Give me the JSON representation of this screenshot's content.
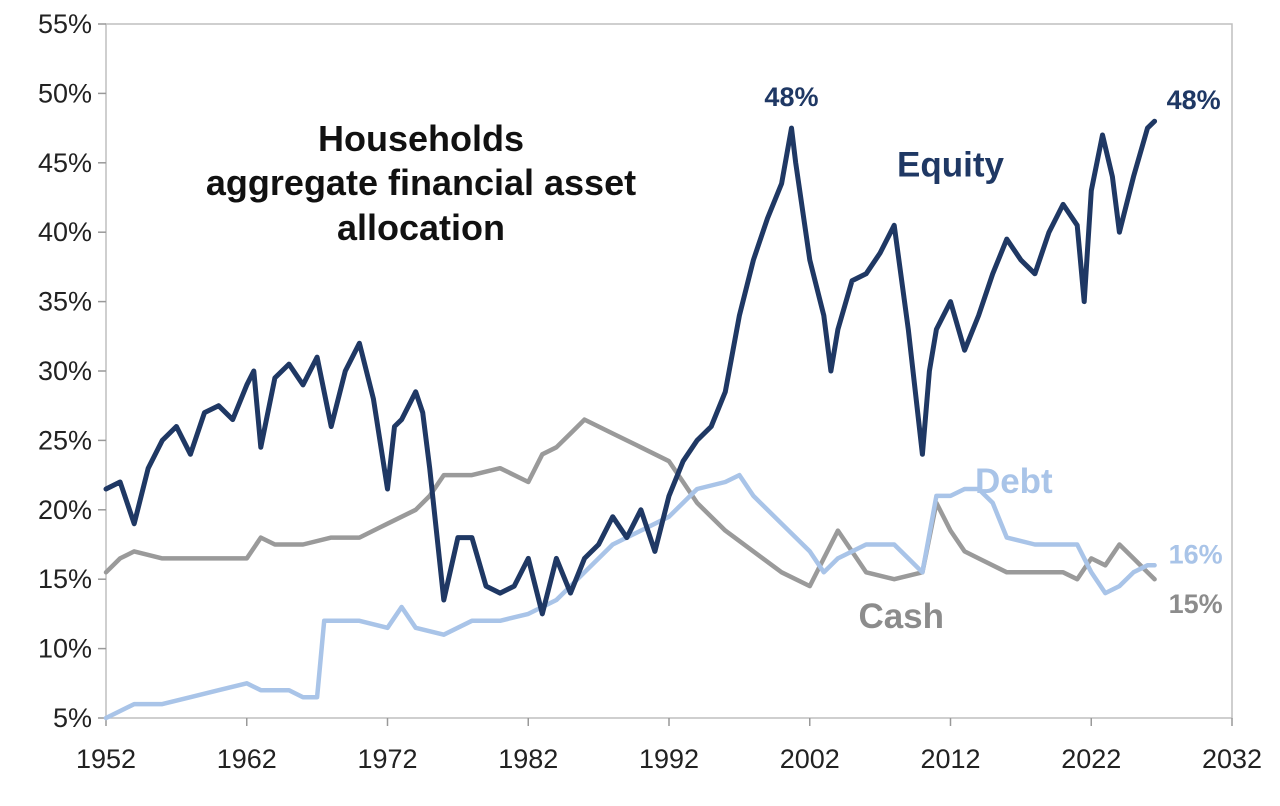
{
  "chart_data": {
    "type": "line",
    "title_lines": [
      "Households",
      "aggregate financial asset",
      "allocation"
    ],
    "xlabel": "",
    "ylabel": "",
    "xlim": [
      1952,
      2032
    ],
    "ylim": [
      5,
      55
    ],
    "x_ticks": [
      "1952",
      "1962",
      "1972",
      "1982",
      "1992",
      "2002",
      "2012",
      "2022",
      "2032"
    ],
    "y_ticks": [
      "5%",
      "10%",
      "15%",
      "20%",
      "25%",
      "30%",
      "35%",
      "40%",
      "45%",
      "50%",
      "55%"
    ],
    "grid": false,
    "legend": "none",
    "series": [
      {
        "name": "Equity",
        "color": "#1f3864",
        "points": [
          [
            1952.0,
            21.5
          ],
          [
            1953.0,
            22.0
          ],
          [
            1954.0,
            19.0
          ],
          [
            1955.0,
            23.0
          ],
          [
            1956.0,
            25.0
          ],
          [
            1957.0,
            26.0
          ],
          [
            1958.0,
            24.0
          ],
          [
            1959.0,
            27.0
          ],
          [
            1960.0,
            27.5
          ],
          [
            1961.0,
            26.5
          ],
          [
            1962.0,
            29.0
          ],
          [
            1962.5,
            30.0
          ],
          [
            1963.0,
            24.5
          ],
          [
            1964.0,
            29.5
          ],
          [
            1965.0,
            30.5
          ],
          [
            1966.0,
            29.0
          ],
          [
            1967.0,
            31.0
          ],
          [
            1968.0,
            26.0
          ],
          [
            1969.0,
            30.0
          ],
          [
            1970.0,
            32.0
          ],
          [
            1971.0,
            28.0
          ],
          [
            1972.0,
            21.5
          ],
          [
            1972.5,
            26.0
          ],
          [
            1973.0,
            26.5
          ],
          [
            1974.0,
            28.5
          ],
          [
            1974.5,
            27.0
          ],
          [
            1975.0,
            23.0
          ],
          [
            1976.0,
            13.5
          ],
          [
            1977.0,
            18.0
          ],
          [
            1978.0,
            18.0
          ],
          [
            1979.0,
            14.5
          ],
          [
            1980.0,
            14.0
          ],
          [
            1981.0,
            14.5
          ],
          [
            1982.0,
            16.5
          ],
          [
            1983.0,
            12.5
          ],
          [
            1984.0,
            16.5
          ],
          [
            1985.0,
            14.0
          ],
          [
            1986.0,
            16.5
          ],
          [
            1987.0,
            17.5
          ],
          [
            1988.0,
            19.5
          ],
          [
            1989.0,
            18.0
          ],
          [
            1990.0,
            20.0
          ],
          [
            1991.0,
            17.0
          ],
          [
            1992.0,
            21.0
          ],
          [
            1993.0,
            23.5
          ],
          [
            1994.0,
            25.0
          ],
          [
            1995.0,
            26.0
          ],
          [
            1996.0,
            28.5
          ],
          [
            1997.0,
            34.0
          ],
          [
            1998.0,
            38.0
          ],
          [
            1999.0,
            41.0
          ],
          [
            2000.0,
            43.5
          ],
          [
            2000.7,
            47.5
          ],
          [
            2001.0,
            45.0
          ],
          [
            2002.0,
            38.0
          ],
          [
            2003.0,
            34.0
          ],
          [
            2003.5,
            30.0
          ],
          [
            2004.0,
            33.0
          ],
          [
            2005.0,
            36.5
          ],
          [
            2006.0,
            37.0
          ],
          [
            2007.0,
            38.5
          ],
          [
            2008.0,
            40.5
          ],
          [
            2009.0,
            33.0
          ],
          [
            2010.0,
            24.0
          ],
          [
            2010.5,
            30.0
          ],
          [
            2011.0,
            33.0
          ],
          [
            2012.0,
            35.0
          ],
          [
            2013.0,
            31.5
          ],
          [
            2014.0,
            34.0
          ],
          [
            2015.0,
            37.0
          ],
          [
            2016.0,
            39.5
          ],
          [
            2017.0,
            38.0
          ],
          [
            2018.0,
            37.0
          ],
          [
            2019.0,
            40.0
          ],
          [
            2020.0,
            42.0
          ],
          [
            2021.0,
            40.5
          ],
          [
            2021.5,
            35.0
          ],
          [
            2022.0,
            43.0
          ],
          [
            2022.8,
            47.0
          ],
          [
            2023.5,
            44.0
          ],
          [
            2024.0,
            40.0
          ],
          [
            2025.0,
            44.0
          ],
          [
            2026.0,
            47.5
          ],
          [
            2026.5,
            48.0
          ]
        ]
      },
      {
        "name": "Cash",
        "color": "#9a9a9a",
        "points": [
          [
            1952.0,
            15.5
          ],
          [
            1953.0,
            16.5
          ],
          [
            1954.0,
            17.0
          ],
          [
            1956.0,
            16.5
          ],
          [
            1958.0,
            16.5
          ],
          [
            1960.0,
            16.5
          ],
          [
            1962.0,
            16.5
          ],
          [
            1963.0,
            18.0
          ],
          [
            1964.0,
            17.5
          ],
          [
            1966.0,
            17.5
          ],
          [
            1968.0,
            18.0
          ],
          [
            1970.0,
            18.0
          ],
          [
            1972.0,
            19.0
          ],
          [
            1974.0,
            20.0
          ],
          [
            1975.0,
            21.0
          ],
          [
            1976.0,
            22.5
          ],
          [
            1978.0,
            22.5
          ],
          [
            1980.0,
            23.0
          ],
          [
            1982.0,
            22.0
          ],
          [
            1983.0,
            24.0
          ],
          [
            1984.0,
            24.5
          ],
          [
            1985.0,
            25.5
          ],
          [
            1986.0,
            26.5
          ],
          [
            1988.0,
            25.5
          ],
          [
            1990.0,
            24.5
          ],
          [
            1992.0,
            23.5
          ],
          [
            1993.0,
            22.0
          ],
          [
            1994.0,
            20.5
          ],
          [
            1996.0,
            18.5
          ],
          [
            1998.0,
            17.0
          ],
          [
            2000.0,
            15.5
          ],
          [
            2002.0,
            14.5
          ],
          [
            2003.0,
            16.5
          ],
          [
            2004.0,
            18.5
          ],
          [
            2005.0,
            17.0
          ],
          [
            2006.0,
            15.5
          ],
          [
            2008.0,
            15.0
          ],
          [
            2010.0,
            15.5
          ],
          [
            2011.0,
            20.5
          ],
          [
            2012.0,
            18.5
          ],
          [
            2013.0,
            17.0
          ],
          [
            2014.0,
            16.5
          ],
          [
            2016.0,
            15.5
          ],
          [
            2018.0,
            15.5
          ],
          [
            2020.0,
            15.5
          ],
          [
            2021.0,
            15.0
          ],
          [
            2022.0,
            16.5
          ],
          [
            2023.0,
            16.0
          ],
          [
            2024.0,
            17.5
          ],
          [
            2025.0,
            16.5
          ],
          [
            2026.0,
            15.5
          ],
          [
            2026.5,
            15.0
          ]
        ]
      },
      {
        "name": "Debt",
        "color": "#a9c4e8",
        "points": [
          [
            1952.0,
            5.0
          ],
          [
            1954.0,
            6.0
          ],
          [
            1956.0,
            6.0
          ],
          [
            1958.0,
            6.5
          ],
          [
            1960.0,
            7.0
          ],
          [
            1962.0,
            7.5
          ],
          [
            1963.0,
            7.0
          ],
          [
            1964.0,
            7.0
          ],
          [
            1965.0,
            7.0
          ],
          [
            1966.0,
            6.5
          ],
          [
            1967.0,
            6.5
          ],
          [
            1967.5,
            12.0
          ],
          [
            1968.0,
            12.0
          ],
          [
            1970.0,
            12.0
          ],
          [
            1972.0,
            11.5
          ],
          [
            1973.0,
            13.0
          ],
          [
            1974.0,
            11.5
          ],
          [
            1976.0,
            11.0
          ],
          [
            1978.0,
            12.0
          ],
          [
            1980.0,
            12.0
          ],
          [
            1982.0,
            12.5
          ],
          [
            1984.0,
            13.5
          ],
          [
            1986.0,
            15.5
          ],
          [
            1988.0,
            17.5
          ],
          [
            1990.0,
            18.5
          ],
          [
            1992.0,
            19.5
          ],
          [
            1994.0,
            21.5
          ],
          [
            1996.0,
            22.0
          ],
          [
            1997.0,
            22.5
          ],
          [
            1998.0,
            21.0
          ],
          [
            2000.0,
            19.0
          ],
          [
            2002.0,
            17.0
          ],
          [
            2003.0,
            15.5
          ],
          [
            2004.0,
            16.5
          ],
          [
            2006.0,
            17.5
          ],
          [
            2008.0,
            17.5
          ],
          [
            2009.0,
            16.5
          ],
          [
            2010.0,
            15.5
          ],
          [
            2011.0,
            21.0
          ],
          [
            2012.0,
            21.0
          ],
          [
            2013.0,
            21.5
          ],
          [
            2014.0,
            21.5
          ],
          [
            2015.0,
            20.5
          ],
          [
            2016.0,
            18.0
          ],
          [
            2018.0,
            17.5
          ],
          [
            2020.0,
            17.5
          ],
          [
            2021.0,
            17.5
          ],
          [
            2022.0,
            15.5
          ],
          [
            2023.0,
            14.0
          ],
          [
            2024.0,
            14.5
          ],
          [
            2025.0,
            15.5
          ],
          [
            2026.0,
            16.0
          ],
          [
            2026.5,
            16.0
          ]
        ]
      }
    ],
    "annotations": [
      {
        "text": "48%",
        "x": 2000.7,
        "y": 47.5,
        "series": "Equity",
        "anchor": "peak"
      },
      {
        "text": "48%",
        "x": 2026.5,
        "y": 48.0,
        "series": "Equity",
        "anchor": "end"
      },
      {
        "text": "16%",
        "x": 2026.5,
        "y": 16.0,
        "series": "Debt",
        "anchor": "end"
      },
      {
        "text": "15%",
        "x": 2026.5,
        "y": 15.0,
        "series": "Cash",
        "anchor": "end"
      }
    ]
  }
}
